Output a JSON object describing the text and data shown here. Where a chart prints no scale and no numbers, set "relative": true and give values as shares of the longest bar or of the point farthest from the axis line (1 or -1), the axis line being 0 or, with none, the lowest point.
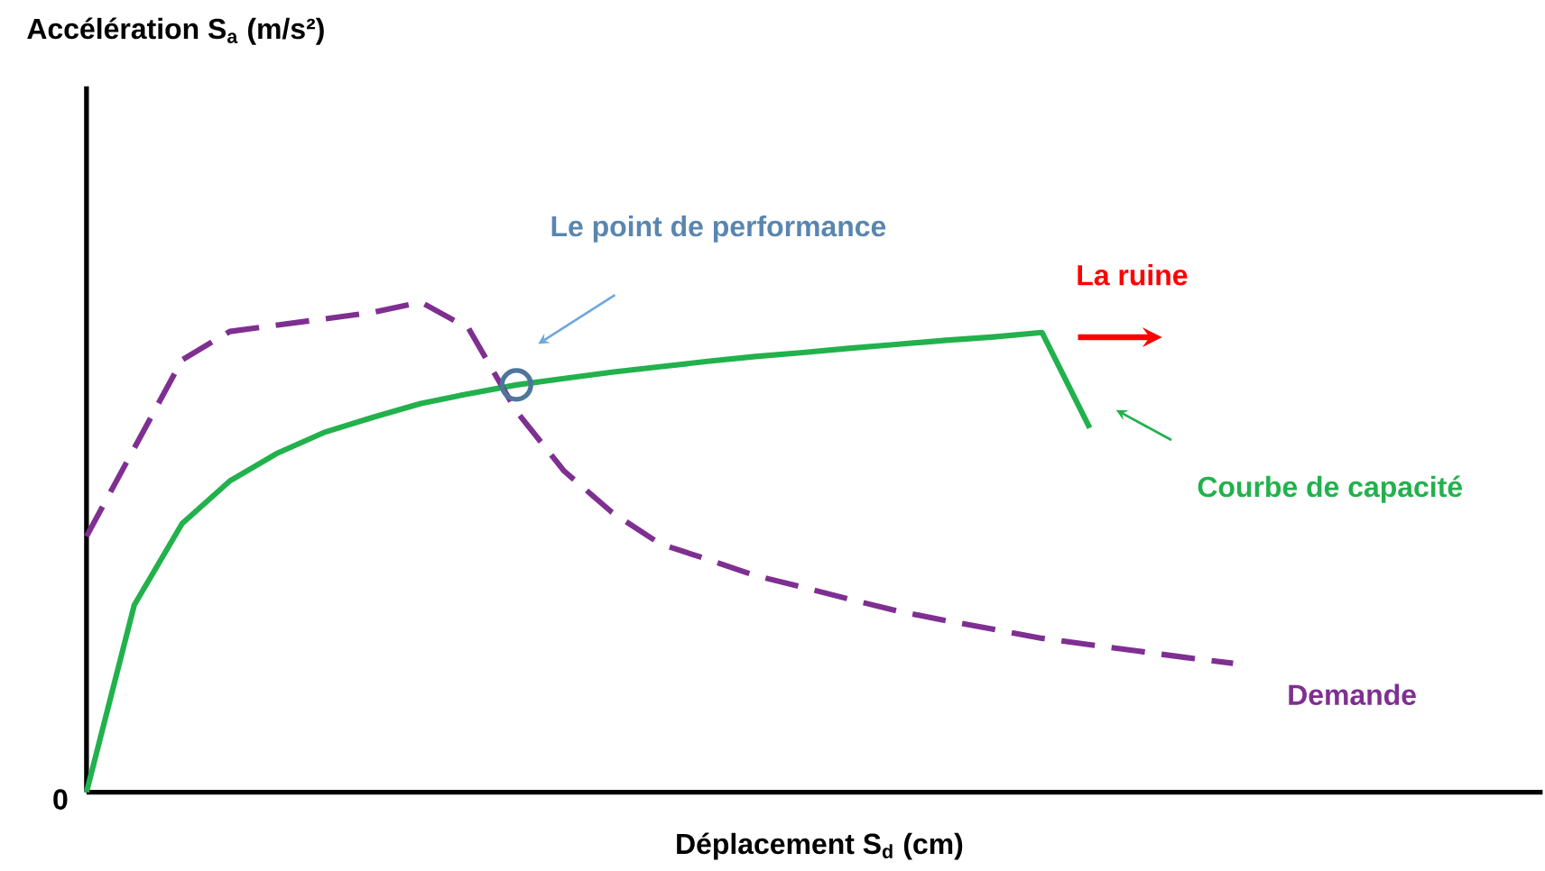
{
  "chart_data": {
    "type": "line",
    "relative": true,
    "xlabel": "Déplacement S$_{d}$ (cm)",
    "categories": [
      null,
      null,
      null,
      null,
      null,
      null,
      null,
      null,
      null,
      null,
      null,
      null,
      null,
      null,
      null,
      null,
      null,
      null,
      null,
      null,
      null,
      null,
      null,
      null,
      null
    ],
    "series": [
      {
        "name": "Courbe de capacité",
        "color": "#22b14c",
        "line_style": "solid",
        "values": [
          0,
          0.382,
          0.548,
          0.635,
          0.692,
          0.735,
          0.765,
          0.793,
          0.813,
          0.831,
          0.844,
          0.857,
          0.868,
          0.879,
          0.889,
          0.897,
          0.906,
          0.914,
          0.922,
          0.929,
          0.938,
          0.743,
          null,
          null,
          null
        ]
      },
      {
        "name": "Demande",
        "color": "#7f2f91",
        "line_style": "dashed",
        "values": [
          0.522,
          0.702,
          0.882,
          0.94,
          0.953,
          0.966,
          0.979,
          1,
          0.946,
          0.777,
          0.655,
          0.571,
          0.507,
          0.475,
          0.442,
          0.418,
          0.393,
          0.369,
          0.35,
          0.332,
          0.314,
          0.301,
          0.288,
          0.275,
          0.263
        ]
      }
    ],
    "annotations": [
      "Le point de performance",
      "La ruine",
      "0",
      "Accélération S$_{a}$ (m/s²)"
    ]
  }
}
